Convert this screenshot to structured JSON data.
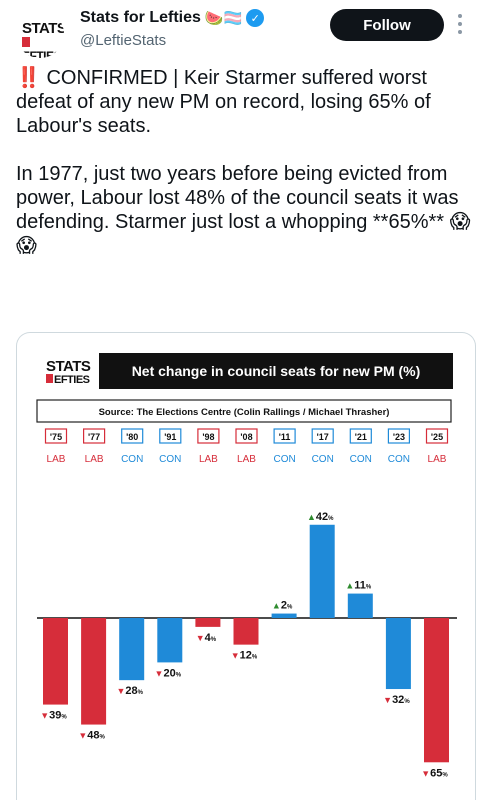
{
  "account": {
    "display_name": "Stats for Lefties",
    "emoji": "🍉🏳️‍⚧️",
    "handle": "@LeftieStats",
    "avatar_top": "STATS",
    "avatar_bottom": "EFTIES"
  },
  "follow_label": "Follow",
  "tweet": {
    "bang": "‼️",
    "line1": " CONFIRMED | Keir Starmer suffered worst defeat of any new PM on record, losing 65% of Labour's seats.",
    "line2": "In 1977, just two years before being evicted from power, Labour lost 48% of the council seats it was defending. Starmer just lost a whopping **65%** 😱😱"
  },
  "icons": {
    "verified": "verified-badge-icon",
    "more": "more-options-icon"
  },
  "colors": {
    "lab": "#d62d3a",
    "con": "#1f8ad8",
    "up": "#2e8b2e",
    "down": "#d62d3a"
  },
  "chart_data": {
    "type": "bar",
    "title": "Net change in council seats for new PM (%)",
    "source": "Source: The Elections Centre (Colin Rallings / Michael Thrasher)",
    "logo_top": "STATS",
    "logo_bottom": "EFTIES",
    "categories": [
      "'75",
      "'77",
      "'80",
      "'91",
      "'98",
      "'08",
      "'11",
      "'17",
      "'21",
      "'23",
      "'25"
    ],
    "parties": [
      "LAB",
      "LAB",
      "CON",
      "CON",
      "LAB",
      "LAB",
      "CON",
      "CON",
      "CON",
      "CON",
      "LAB"
    ],
    "values": [
      -39,
      -48,
      -28,
      -20,
      -4,
      -12,
      2,
      42,
      11,
      -32,
      -65
    ],
    "value_suffix": "%",
    "ylim": [
      -65,
      42
    ]
  }
}
